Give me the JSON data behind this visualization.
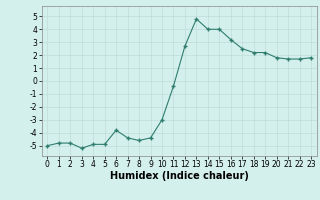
{
  "x": [
    0,
    1,
    2,
    3,
    4,
    5,
    6,
    7,
    8,
    9,
    10,
    11,
    12,
    13,
    14,
    15,
    16,
    17,
    18,
    19,
    20,
    21,
    22,
    23
  ],
  "y": [
    -5.0,
    -4.8,
    -4.8,
    -5.2,
    -4.9,
    -4.9,
    -3.8,
    -4.4,
    -4.6,
    -4.4,
    -3.0,
    -0.4,
    2.7,
    4.8,
    4.0,
    4.0,
    3.2,
    2.5,
    2.2,
    2.2,
    1.8,
    1.7,
    1.7,
    1.8
  ],
  "xlabel": "Humidex (Indice chaleur)",
  "ylim": [
    -5.8,
    5.8
  ],
  "xlim": [
    -0.5,
    23.5
  ],
  "yticks": [
    -5,
    -4,
    -3,
    -2,
    -1,
    0,
    1,
    2,
    3,
    4,
    5
  ],
  "xticks": [
    0,
    1,
    2,
    3,
    4,
    5,
    6,
    7,
    8,
    9,
    10,
    11,
    12,
    13,
    14,
    15,
    16,
    17,
    18,
    19,
    20,
    21,
    22,
    23
  ],
  "line_color": "#2e7d6e",
  "marker_color": "#2e7d6e",
  "bg_color": "#d4f0ec",
  "grid_color": "#c0ddd8",
  "xlabel_fontsize": 7,
  "tick_fontsize": 5.5
}
